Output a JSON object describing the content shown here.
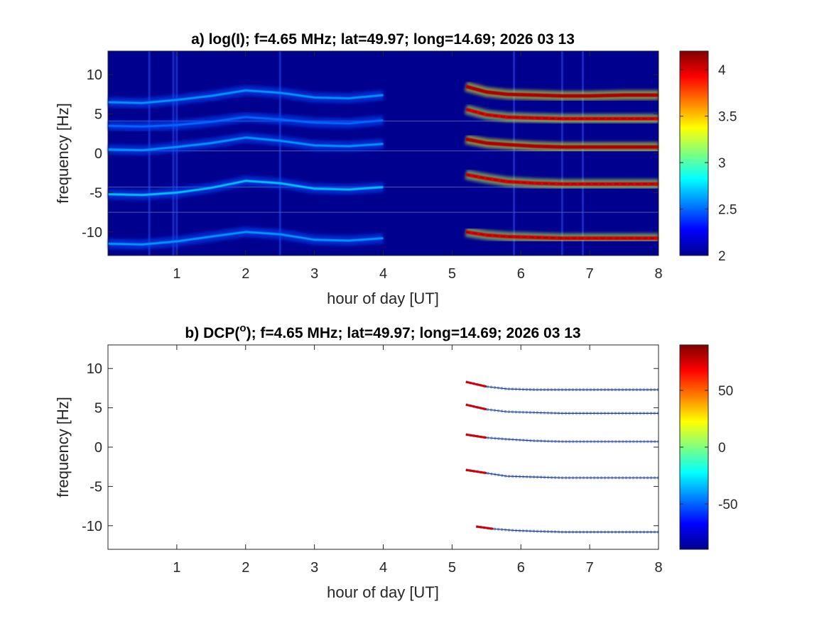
{
  "chart_data": [
    {
      "panel": "a",
      "type": "heatmap",
      "title": "a) log(I); f=4.65 MHz;  lat=49.97; long=14.69; 2026 03 13",
      "xlabel": "hour of day [UT]",
      "ylabel": "frequency [Hz]",
      "xlim": [
        0,
        8
      ],
      "ylim": [
        -13,
        13
      ],
      "xticks": [
        1,
        2,
        3,
        4,
        5,
        6,
        7,
        8
      ],
      "yticks": [
        -10,
        -5,
        0,
        5,
        10
      ],
      "colorbar": {
        "colormap": "jet",
        "range": [
          2,
          4.2
        ],
        "ticks": [
          2,
          2.5,
          3,
          3.5,
          4
        ]
      },
      "background_color": "#00008f",
      "traces": [
        {
          "x": [
            0,
            0.5,
            1,
            1.5,
            2,
            2.5,
            3,
            3.5,
            4
          ],
          "y": [
            6.5,
            6.4,
            6.8,
            7.3,
            8.0,
            7.7,
            7.1,
            7.0,
            7.4
          ],
          "intensity": 2.6
        },
        {
          "x": [
            0,
            0.5,
            1,
            1.5,
            2,
            2.5,
            3,
            3.5,
            4
          ],
          "y": [
            3.5,
            3.4,
            3.6,
            4.0,
            4.6,
            4.3,
            3.9,
            3.8,
            4.2
          ],
          "intensity": 2.5
        },
        {
          "x": [
            0,
            0.5,
            1,
            1.5,
            2,
            2.5,
            3,
            3.5,
            4
          ],
          "y": [
            0.5,
            0.4,
            0.8,
            1.3,
            2.0,
            1.6,
            1.0,
            0.9,
            1.2
          ],
          "intensity": 2.6
        },
        {
          "x": [
            0,
            0.5,
            1,
            1.5,
            2,
            2.5,
            3,
            3.5,
            4
          ],
          "y": [
            -5.2,
            -5.3,
            -5.0,
            -4.4,
            -3.5,
            -3.8,
            -4.5,
            -4.6,
            -4.3
          ],
          "intensity": 2.7
        },
        {
          "x": [
            0,
            0.5,
            1,
            1.5,
            2,
            2.5,
            3,
            3.5,
            4
          ],
          "y": [
            -11.5,
            -11.6,
            -11.2,
            -10.6,
            -10.0,
            -10.3,
            -11.0,
            -11.1,
            -10.8
          ],
          "intensity": 2.6
        },
        {
          "x": [
            5.2,
            5.5,
            5.8,
            6.2,
            6.6,
            7.0,
            7.5,
            8.0
          ],
          "y": [
            8.5,
            7.8,
            7.5,
            7.4,
            7.3,
            7.3,
            7.4,
            7.4
          ],
          "intensity": 4.1
        },
        {
          "x": [
            5.2,
            5.5,
            5.8,
            6.2,
            6.6,
            7.0,
            7.5,
            8.0
          ],
          "y": [
            5.6,
            4.9,
            4.6,
            4.5,
            4.4,
            4.4,
            4.4,
            4.4
          ],
          "intensity": 4.0
        },
        {
          "x": [
            5.2,
            5.5,
            5.8,
            6.2,
            6.6,
            7.0,
            7.5,
            8.0
          ],
          "y": [
            1.8,
            1.3,
            1.1,
            0.9,
            0.8,
            0.8,
            0.8,
            0.8
          ],
          "intensity": 4.1
        },
        {
          "x": [
            5.2,
            5.5,
            5.8,
            6.2,
            6.6,
            7.0,
            7.5,
            8.0
          ],
          "y": [
            -2.7,
            -3.2,
            -3.6,
            -3.8,
            -3.9,
            -3.9,
            -3.9,
            -3.9
          ],
          "intensity": 4.0
        },
        {
          "x": [
            5.2,
            5.5,
            5.8,
            6.2,
            6.6,
            7.0,
            7.5,
            8.0
          ],
          "y": [
            -10.0,
            -10.4,
            -10.6,
            -10.7,
            -10.8,
            -10.8,
            -10.8,
            -10.8
          ],
          "intensity": 4.0
        }
      ],
      "horizontal_lines": [
        4.1,
        0.3,
        -4.3,
        -7.5
      ],
      "vertical_stripes": [
        0.6,
        0.95,
        1.0,
        2.5,
        5.9,
        6.6,
        6.9
      ]
    },
    {
      "panel": "b",
      "type": "heatmap",
      "title": "b) DCP(°); f=4.65 MHz;  lat=49.97; long=14.69; 2026 03 13",
      "title_prefix": "b) DCP(",
      "title_superscript": "o",
      "title_suffix": "); f=4.65 MHz;  lat=49.97; long=14.69; 2026 03 13",
      "xlabel": "hour of day [UT]",
      "ylabel": "frequency [Hz]",
      "xlim": [
        0,
        8
      ],
      "ylim": [
        -13,
        13
      ],
      "xticks": [
        1,
        2,
        3,
        4,
        5,
        6,
        7,
        8
      ],
      "yticks": [
        -10,
        -5,
        0,
        5,
        10
      ],
      "colorbar": {
        "colormap": "jet",
        "range": [
          -90,
          90
        ],
        "ticks": [
          50,
          0,
          -50
        ]
      },
      "background_color": "#ffffff",
      "traces": [
        {
          "x": [
            5.2,
            5.5,
            5.8,
            6.2,
            6.6,
            7.0,
            7.5,
            8.0
          ],
          "y": [
            8.3,
            7.7,
            7.4,
            7.3,
            7.3,
            7.3,
            7.3,
            7.3
          ]
        },
        {
          "x": [
            5.2,
            5.5,
            5.8,
            6.2,
            6.6,
            7.0,
            7.5,
            8.0
          ],
          "y": [
            5.4,
            4.8,
            4.5,
            4.4,
            4.3,
            4.3,
            4.3,
            4.3
          ]
        },
        {
          "x": [
            5.2,
            5.5,
            5.8,
            6.2,
            6.6,
            7.0,
            7.5,
            8.0
          ],
          "y": [
            1.6,
            1.2,
            1.0,
            0.8,
            0.7,
            0.7,
            0.7,
            0.7
          ]
        },
        {
          "x": [
            5.2,
            5.5,
            5.8,
            6.2,
            6.6,
            7.0,
            7.5,
            8.0
          ],
          "y": [
            -2.9,
            -3.3,
            -3.7,
            -3.8,
            -3.9,
            -3.9,
            -3.9,
            -3.9
          ]
        },
        {
          "x": [
            5.35,
            5.6,
            5.9,
            6.2,
            6.6,
            7.0,
            7.5,
            8.0
          ],
          "y": [
            -10.1,
            -10.4,
            -10.6,
            -10.7,
            -10.8,
            -10.8,
            -10.8,
            -10.8
          ]
        }
      ]
    }
  ]
}
